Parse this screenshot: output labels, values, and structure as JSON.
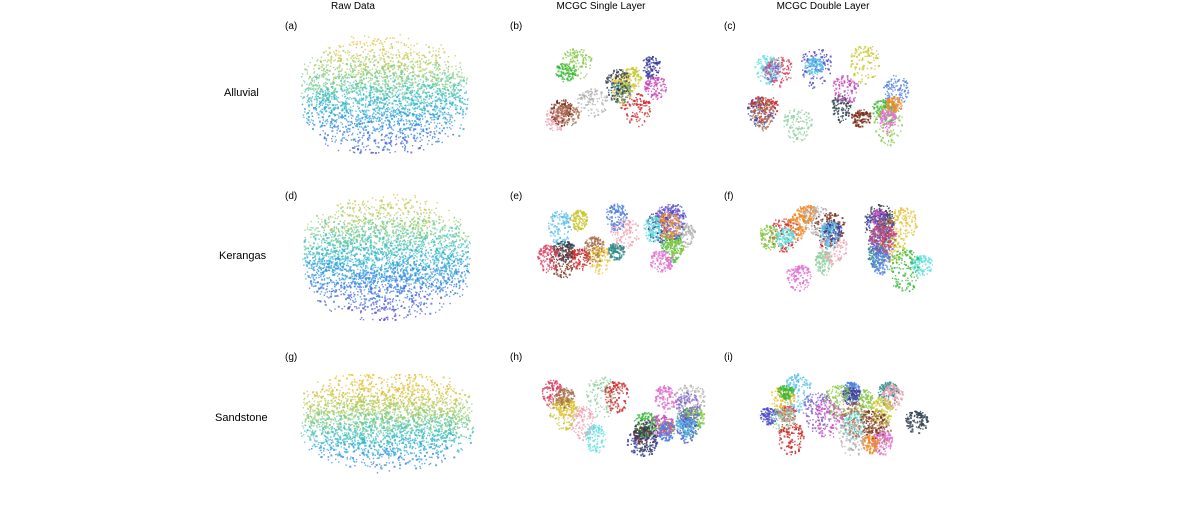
{
  "figure": {
    "column_headers": [
      "Raw Data",
      "MCGC Single Layer",
      "MCGC Double Layer"
    ],
    "row_labels": [
      "Alluvial",
      "Kerangas",
      "Sandstone"
    ],
    "panel_labels": [
      "(a)",
      "(b)",
      "(c)",
      "(d)",
      "(e)",
      "(f)",
      "(g)",
      "(h)",
      "(i)"
    ]
  },
  "colors": {
    "raw_gradient": [
      "#5548d0",
      "#2f86e8",
      "#2fc0c8",
      "#9fd06a",
      "#e8bd2c"
    ],
    "segment_palette": [
      "#e8c032",
      "#4a48c8",
      "#c64ab8",
      "#38b838",
      "#d84060",
      "#7a2a18",
      "#56c0e8",
      "#b0b0b0",
      "#88c848",
      "#f08a28",
      "#3a3a98",
      "#e070d0",
      "#2a8a8a",
      "#a87050",
      "#60e0e0",
      "#c8c830",
      "#8060d0",
      "#f0a0b0",
      "#304050",
      "#90d0a0",
      "#d02828",
      "#5080e0"
    ]
  }
}
